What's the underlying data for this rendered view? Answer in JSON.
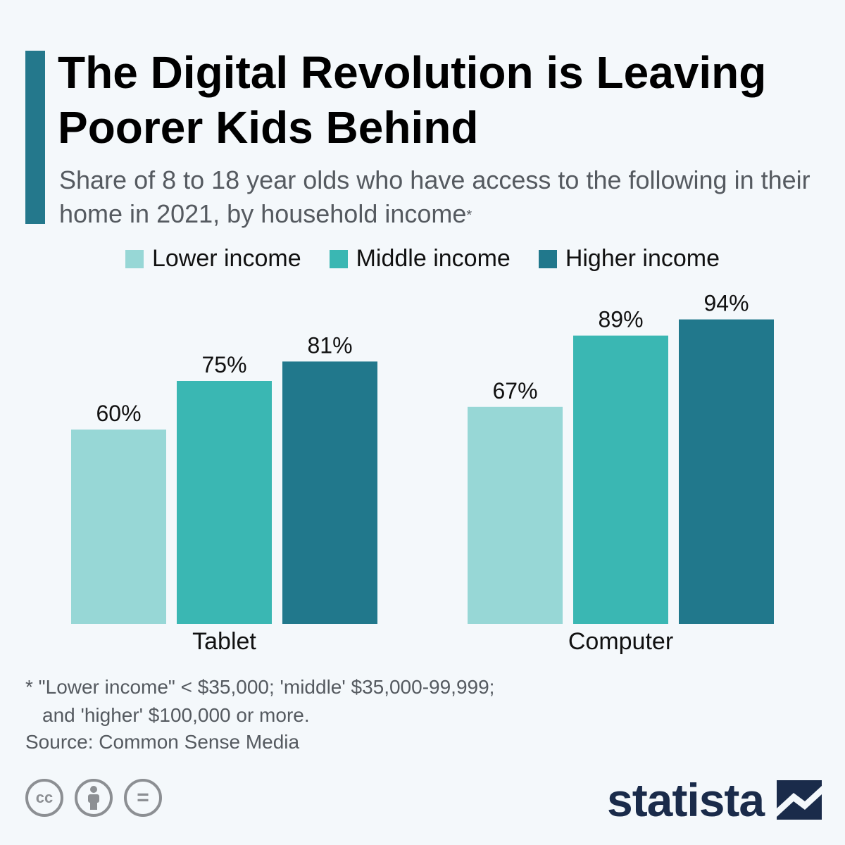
{
  "title": "The Digital Revolution is Leaving Poorer Kids Behind",
  "subtitle": "Share of 8 to 18 year olds who have access to the following in their home in 2021, by household income",
  "subtitle_marker": "*",
  "colors": {
    "accent": "#24788c",
    "lower": "#97d7d6",
    "middle": "#3ab7b3",
    "higher": "#21788c"
  },
  "chart_data": {
    "type": "bar",
    "categories": [
      "Tablet",
      "Computer"
    ],
    "series": [
      {
        "name": "Lower income",
        "values": [
          60,
          67
        ],
        "labels": [
          "60%",
          "67%"
        ]
      },
      {
        "name": "Middle income",
        "values": [
          75,
          89
        ],
        "labels": [
          "75%",
          "89%"
        ]
      },
      {
        "name": "Higher income",
        "values": [
          81,
          94
        ],
        "labels": [
          "81%",
          "94%"
        ]
      }
    ],
    "title": "",
    "xlabel": "",
    "ylabel": "",
    "ylim": [
      0,
      100
    ],
    "grid": false,
    "legend": "top-center"
  },
  "footnote": {
    "line1": "* \"Lower income\" < $35,000; 'middle' $35,000-99,999;",
    "line2": "and 'higher' $100,000 or more."
  },
  "source": "Source: Common Sense Media",
  "license_icons": [
    "cc-icon",
    "attribution-icon",
    "no-derivatives-icon"
  ],
  "license_glyphs": [
    "cc",
    "="
  ],
  "brand": "statista"
}
